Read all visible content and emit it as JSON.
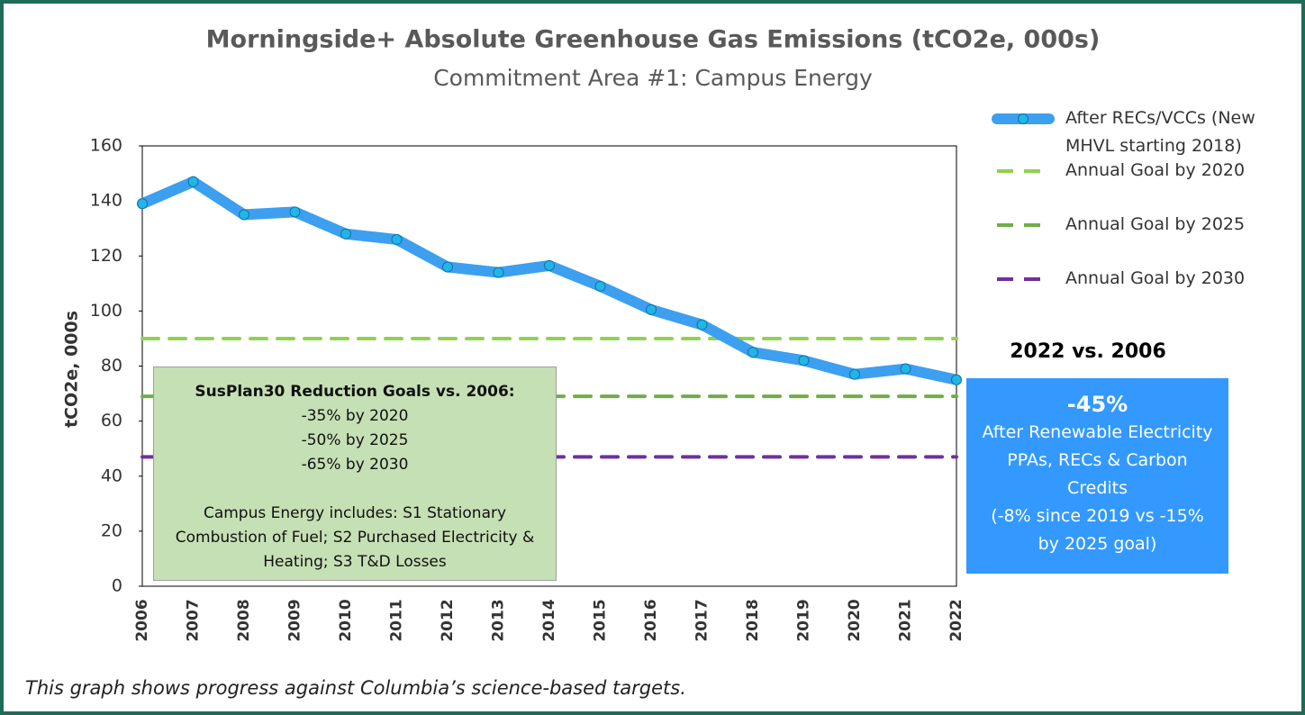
{
  "chart_data": {
    "type": "line",
    "title": "Morningside+ Absolute Greenhouse Gas Emissions (tCO2e, 000s)",
    "subtitle": "Commitment Area #1: Campus Energy",
    "y_label": "tCO2e, 000s",
    "categories": [
      "2006",
      "2007",
      "2008",
      "2009",
      "2010",
      "2011",
      "2012",
      "2013",
      "2014",
      "2015",
      "2016",
      "2017",
      "2018",
      "2019",
      "2020",
      "2021",
      "2022"
    ],
    "series": [
      {
        "name": "After RECs/VCCs  (New MHVL starting 2018)",
        "color": "#3d9ff0",
        "style": "solid",
        "values": [
          139,
          147,
          135,
          136,
          128,
          126,
          116,
          114,
          116.5,
          109,
          100.5,
          95,
          85,
          82,
          77,
          79,
          75
        ]
      },
      {
        "name": "Annual Goal by 2020",
        "color": "#92d050",
        "style": "dashed",
        "values": [
          90,
          90,
          90,
          90,
          90,
          90,
          90,
          90,
          90,
          90,
          90,
          90,
          90,
          90,
          90,
          90,
          90
        ]
      },
      {
        "name": "Annual Goal by 2025",
        "color": "#70ad47",
        "style": "dashed",
        "values": [
          69,
          69,
          69,
          69,
          69,
          69,
          69,
          69,
          69,
          69,
          69,
          69,
          69,
          69,
          69,
          69,
          69
        ]
      },
      {
        "name": "Annual Goal by 2030",
        "color": "#7030a0",
        "style": "dashed",
        "values": [
          47,
          47,
          47,
          47,
          47,
          47,
          47,
          47,
          47,
          47,
          47,
          47,
          47,
          47,
          47,
          47,
          47
        ]
      }
    ],
    "ylim": [
      0,
      160
    ],
    "yticks": [
      0,
      20,
      40,
      60,
      80,
      100,
      120,
      140,
      160
    ],
    "grid": false,
    "legend": "right",
    "goals_box": {
      "heading": "SusPlan30 Reduction Goals vs. 2006:",
      "lines": [
        "-35% by 2020",
        "-50% by 2025",
        "-65% by 2030"
      ],
      "note": "Campus Energy includes: S1 Stationary Combustion of Fuel; S2 Purchased Electricity & Heating; S3 T&D Losses"
    },
    "comparison": {
      "heading": "2022 vs. 2006",
      "value": "-45%",
      "text": "After Renewable Electricity PPAs, RECs & Carbon Credits",
      "note": "(-8% since 2019 vs -15% by 2025 goal)"
    },
    "caption": "This graph shows progress against Columbia’s science-based targets."
  }
}
